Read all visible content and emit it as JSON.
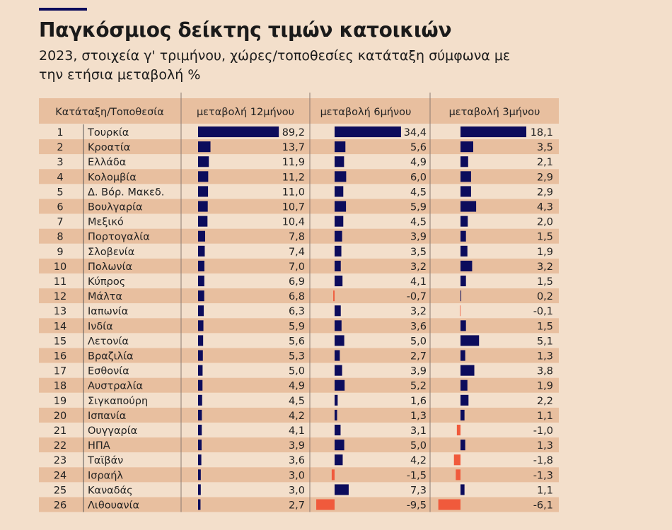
{
  "title": "Παγκόσμιος δείκτης τιμών κατοικιών",
  "subtitle": "2023, στοιχεία γ' τριμήνου, χώρες/τοποθεσίες κατάταξη σύμφωνα με την ετήσια μεταβολή %",
  "colors": {
    "positive": "#0c0c5c",
    "negative": "#f05a3c",
    "row_light": "#f3dfcb",
    "row_dark": "#e8bf9f",
    "background": "#f3dfcb"
  },
  "chart_data": {
    "type": "table",
    "columns": [
      "Κατάταξη/Τοποθεσία",
      "μεταβολή 12μήνου",
      "μεταβολή 6μήνου",
      "μεταβολή 3μήνου"
    ],
    "ranks": [
      1,
      2,
      3,
      4,
      5,
      6,
      7,
      8,
      9,
      10,
      11,
      12,
      13,
      14,
      15,
      16,
      17,
      18,
      19,
      20,
      21,
      22,
      23,
      24,
      25,
      26
    ],
    "locations": [
      "Τουρκία",
      "Κροατία",
      "Ελλάδα",
      "Κολομβία",
      "Δ. Βόρ. Μακεδ.",
      "Βουλγαρία",
      "Μεξικό",
      "Πορτογαλία",
      "Σλοβενία",
      "Πολωνία",
      "Κύπρος",
      "Μάλτα",
      "Ιαπωνία",
      "Ινδία",
      "Λετονία",
      "Βραζιλία",
      "Εσθονία",
      "Αυστραλία",
      "Σιγκαπούρη",
      "Ισπανία",
      "Ουγγαρία",
      "ΗΠΑ",
      "Ταϊβάν",
      "Ισραήλ",
      "Καναδάς",
      "Λιθουανία"
    ],
    "series": [
      {
        "name": "μεταβολή 12μήνου",
        "values": [
          89.2,
          13.7,
          11.9,
          11.2,
          11.0,
          10.7,
          10.4,
          7.8,
          7.4,
          7.0,
          6.9,
          6.8,
          6.3,
          5.9,
          5.6,
          5.3,
          5.0,
          4.9,
          4.5,
          4.2,
          4.1,
          3.9,
          3.6,
          3.0,
          3.0,
          2.7
        ]
      },
      {
        "name": "μεταβολή 6μήνου",
        "values": [
          34.4,
          5.6,
          4.9,
          6.0,
          4.5,
          5.9,
          4.5,
          3.9,
          3.5,
          3.2,
          4.1,
          -0.7,
          3.2,
          3.6,
          5.0,
          2.7,
          3.9,
          5.2,
          1.6,
          1.3,
          3.1,
          5.0,
          4.2,
          -1.5,
          7.3,
          -9.5
        ]
      },
      {
        "name": "μεταβολή 3μήνου",
        "values": [
          18.1,
          3.5,
          2.1,
          2.9,
          2.9,
          4.3,
          2.0,
          1.5,
          1.9,
          3.2,
          1.5,
          0.2,
          -0.1,
          1.5,
          5.1,
          1.3,
          3.8,
          1.9,
          2.2,
          1.1,
          -1.0,
          1.3,
          -1.8,
          -1.3,
          1.1,
          -6.1
        ]
      }
    ]
  }
}
